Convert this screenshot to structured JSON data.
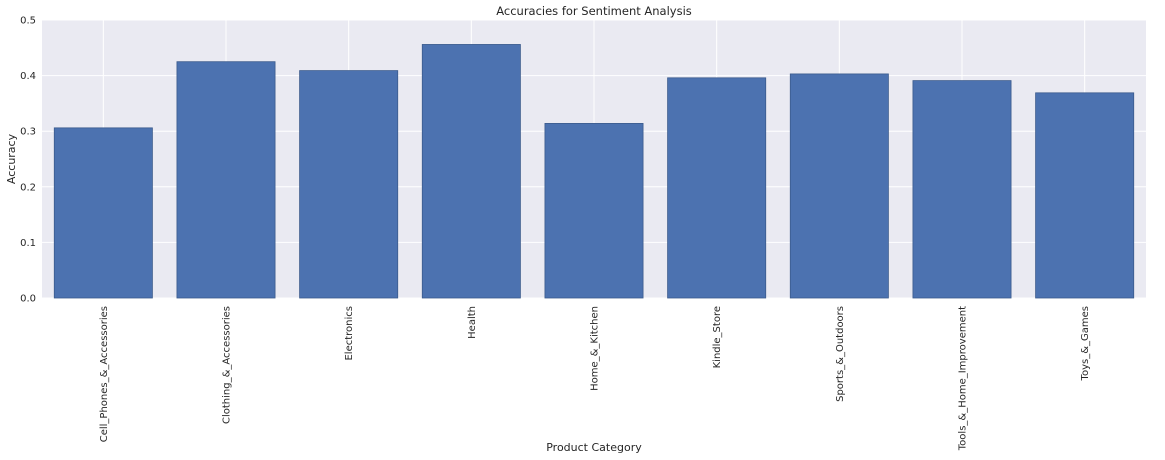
{
  "chart_data": {
    "type": "bar",
    "title": "Accuracies for Sentiment Analysis",
    "xlabel": "Product Category",
    "ylabel": "Accuracy",
    "categories": [
      "Cell_Phones_&_Accessories",
      "Clothing_&_Accessories",
      "Electronics",
      "Health",
      "Home_&_Kitchen",
      "Kindle_Store",
      "Sports_&_Outdoors",
      "Tools_&_Home_Improvement",
      "Toys_&_Games"
    ],
    "values": [
      0.306,
      0.425,
      0.409,
      0.456,
      0.314,
      0.396,
      0.403,
      0.391,
      0.369
    ],
    "ylim": [
      0,
      0.5
    ],
    "yticks": [
      "0.0",
      "0.1",
      "0.2",
      "0.3",
      "0.4",
      "0.5"
    ],
    "grid": true,
    "bar_color": "#4c72b0",
    "background_color": "#eaeaf2"
  }
}
